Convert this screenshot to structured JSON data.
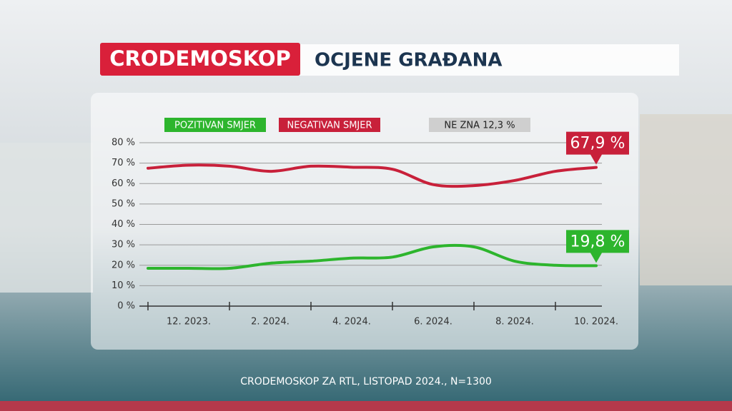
{
  "chart_data": {
    "type": "line",
    "brand": "CRODEMOSKOP",
    "title": "OCJENE GRAĐANA",
    "legend_note": "NE ZNA 12,3 %",
    "source": "CRODEMOSKOP ZA RTL,  LISTOPAD 2024., N=1300",
    "categories": [
      null,
      "12. 2023.",
      null,
      "2. 2024.",
      null,
      "4. 2024.",
      null,
      "6. 2024.",
      null,
      "8. 2024.",
      null,
      "10. 2024."
    ],
    "series": [
      {
        "name": "POZITIVAN SMJER",
        "color": "#2db52d",
        "values": [
          18.5,
          18.5,
          18.5,
          21,
          22,
          23.5,
          24,
          29,
          29,
          22,
          20,
          19.8
        ],
        "value_labels": [
          null,
          null,
          null,
          null,
          null,
          null,
          null,
          null,
          null,
          null,
          null,
          "19,8 %"
        ]
      },
      {
        "name": "NEGATIVAN SMJER",
        "color": "#c8203a",
        "values": [
          67.5,
          69,
          68.5,
          66,
          68.5,
          68,
          67,
          59.5,
          59,
          61.5,
          66,
          67.9
        ],
        "value_labels": [
          null,
          null,
          null,
          null,
          null,
          null,
          null,
          null,
          null,
          null,
          null,
          "67,9 %"
        ]
      }
    ],
    "ylim": [
      0,
      80
    ],
    "yticks": [
      {
        "value": 0,
        "label": "0 %"
      },
      {
        "value": 10,
        "label": "10 %"
      },
      {
        "value": 20,
        "label": "20 %"
      },
      {
        "value": 30,
        "label": "30 %"
      },
      {
        "value": 40,
        "label": "40 %"
      },
      {
        "value": 50,
        "label": "50 %"
      },
      {
        "value": 60,
        "label": "60 %"
      },
      {
        "value": 70,
        "label": "70 %"
      },
      {
        "value": 80,
        "label": "80 %"
      }
    ],
    "grid": true
  }
}
